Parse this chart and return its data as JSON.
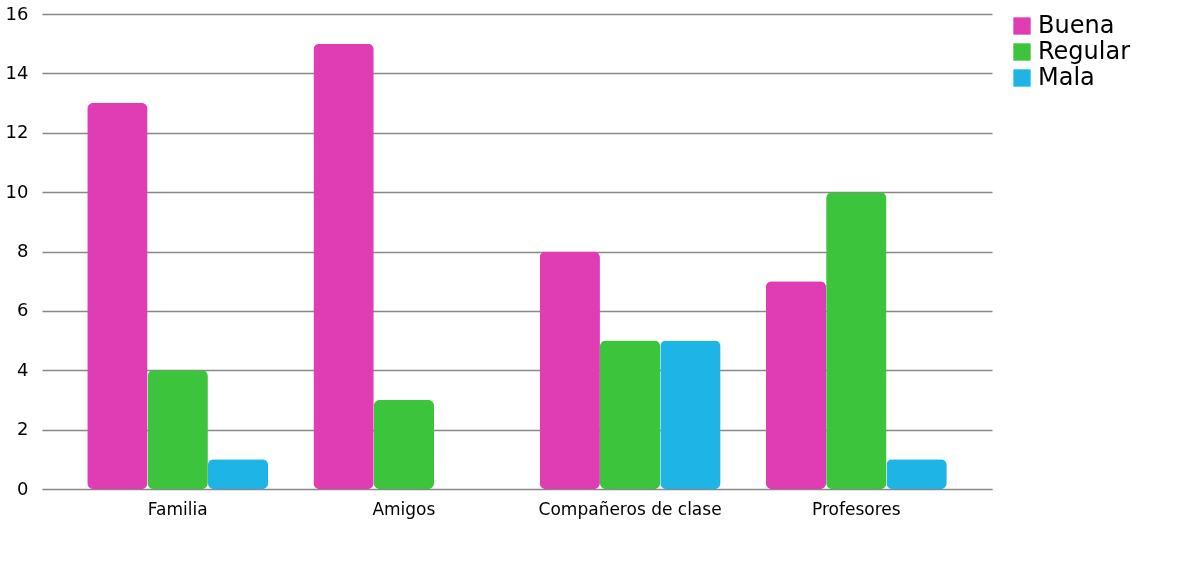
{
  "chart_data": {
    "type": "bar",
    "categories": [
      "Familia",
      "Amigos",
      "Compañeros de clase",
      "Profesores"
    ],
    "series": [
      {
        "name": "Buena",
        "color": "#e03cb4",
        "values": [
          13,
          15,
          8,
          7
        ]
      },
      {
        "name": "Regular",
        "color": "#3cc43c",
        "values": [
          4,
          3,
          5,
          10
        ]
      },
      {
        "name": "Mala",
        "color": "#1eb4e6",
        "values": [
          1,
          null,
          5,
          1
        ]
      }
    ],
    "ylim": [
      0,
      16
    ],
    "yticks": [
      0,
      2,
      4,
      6,
      8,
      10,
      12,
      14,
      16
    ],
    "grid": "y",
    "legend": "right"
  }
}
